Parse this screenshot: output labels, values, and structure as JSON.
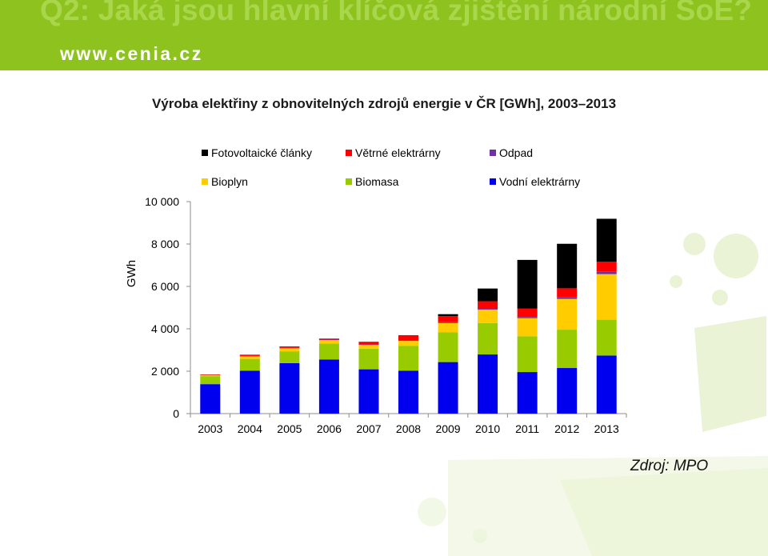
{
  "header": {
    "title": "Q2: Jaká jsou hlavní klíčová zjištění národní SoE?",
    "url": "www.cenia.cz",
    "band_color": "#8ec31f"
  },
  "source": "Zdroj: MPO",
  "chart_data": {
    "type": "bar",
    "stacked": true,
    "title": "Výroba elektřiny z obnovitelných zdrojů energie v ČR [GWh], 2003–2013",
    "xlabel": "",
    "ylabel": "GWh",
    "ylim": [
      0,
      10000
    ],
    "yticks": [
      0,
      2000,
      4000,
      6000,
      8000,
      10000
    ],
    "ytick_labels": [
      "0",
      "2 000",
      "4 000",
      "6 000",
      "8 000",
      "10 000"
    ],
    "grid": false,
    "legend_position": "top",
    "categories": [
      "2003",
      "2004",
      "2005",
      "2006",
      "2007",
      "2008",
      "2009",
      "2010",
      "2011",
      "2012",
      "2013"
    ],
    "legend_order": [
      "Fotovoltaické články",
      "Větrné elektrárny",
      "Odpad",
      "Bioplyn",
      "Biomasa",
      "Vodní elektrárny"
    ],
    "series": [
      {
        "name": "Vodní elektrárny",
        "color": "#0000ee",
        "values": [
          1390,
          2020,
          2380,
          2550,
          2090,
          2020,
          2430,
          2790,
          1960,
          2150,
          2740
        ]
      },
      {
        "name": "Biomasa",
        "color": "#99cc00",
        "values": [
          380,
          560,
          560,
          750,
          970,
          1180,
          1400,
          1480,
          1690,
          1810,
          1690
        ]
      },
      {
        "name": "Bioplyn",
        "color": "#ffcc00",
        "values": [
          60,
          130,
          150,
          170,
          180,
          230,
          440,
          630,
          850,
          1450,
          2150
        ]
      },
      {
        "name": "Odpad",
        "color": "#7030a0",
        "values": [
          10,
          10,
          10,
          20,
          20,
          20,
          40,
          40,
          60,
          70,
          110
        ]
      },
      {
        "name": "Větrné elektrárny",
        "color": "#ff0000",
        "values": [
          10,
          60,
          70,
          50,
          130,
          250,
          290,
          360,
          390,
          430,
          480
        ]
      },
      {
        "name": "Fotovoltaické články",
        "color": "#000000",
        "values": [
          0,
          0,
          0,
          0,
          0,
          0,
          90,
          600,
          2300,
          2100,
          2020
        ]
      }
    ]
  }
}
